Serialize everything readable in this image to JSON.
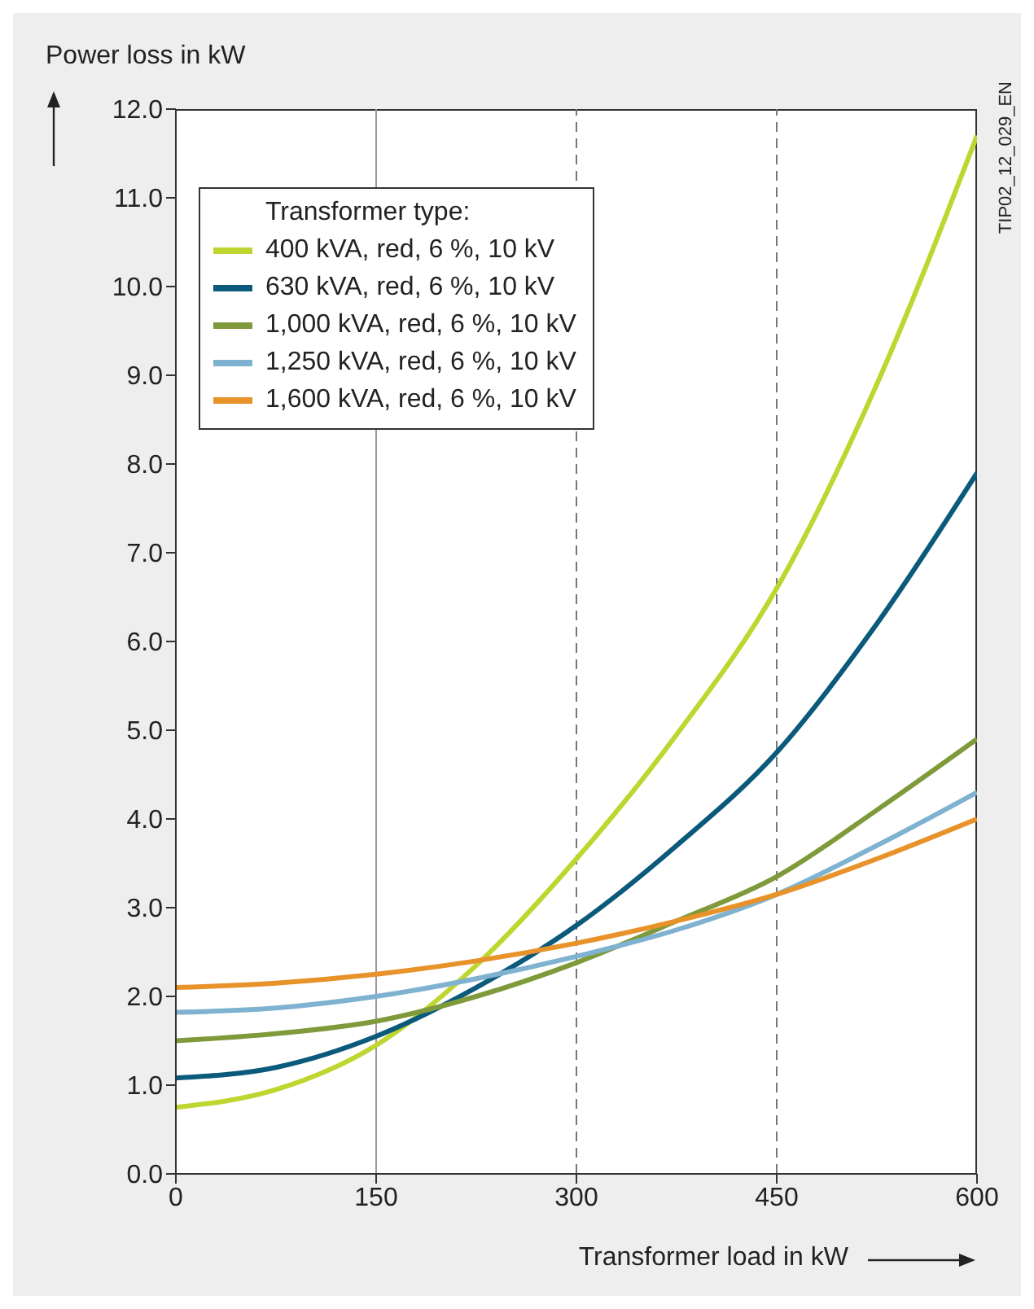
{
  "chart_data": {
    "type": "line",
    "xlabel": "Transformer load in kW",
    "ylabel": "Power loss in kW",
    "legend_title": "Transformer type:",
    "annotations": [
      "TIP02_12_029_EN"
    ],
    "x": [
      0,
      75,
      150,
      225,
      300,
      375,
      450,
      525,
      600
    ],
    "series": [
      {
        "name": "400 kVA, red, 6 %, 10 kV",
        "color": "#bfd630",
        "values": [
          0.75,
          0.95,
          1.45,
          2.35,
          3.55,
          4.95,
          6.6,
          8.9,
          11.7
        ]
      },
      {
        "name": "630 kVA, red, 6 %, 10 kV",
        "color": "#0b5a7c",
        "values": [
          1.08,
          1.2,
          1.55,
          2.1,
          2.8,
          3.7,
          4.75,
          6.2,
          7.9
        ]
      },
      {
        "name": "1,000 kVA, red, 6 %, 10 kV",
        "color": "#7f9a3a",
        "values": [
          1.5,
          1.58,
          1.72,
          2.0,
          2.38,
          2.85,
          3.35,
          4.1,
          4.9
        ]
      },
      {
        "name": "1,250 kVA, red, 6 %, 10 kV",
        "color": "#7fb2d0",
        "values": [
          1.82,
          1.87,
          2.0,
          2.2,
          2.45,
          2.75,
          3.15,
          3.7,
          4.3
        ]
      },
      {
        "name": "1,600 kVA, red, 6 %, 10 kV",
        "color": "#e8922a",
        "values": [
          2.1,
          2.15,
          2.25,
          2.4,
          2.6,
          2.85,
          3.15,
          3.55,
          4.0
        ]
      }
    ],
    "xlim": [
      0,
      600
    ],
    "xticks": [
      0,
      150,
      300,
      450,
      600
    ],
    "ylim": [
      0,
      12
    ],
    "yticks": [
      {
        "value": 0,
        "label": "0.0"
      },
      {
        "value": 1,
        "label": "1.0"
      },
      {
        "value": 2,
        "label": "2.0"
      },
      {
        "value": 3,
        "label": "3.0"
      },
      {
        "value": 4,
        "label": "4.0"
      },
      {
        "value": 5,
        "label": "5.0"
      },
      {
        "value": 6,
        "label": "6.0"
      },
      {
        "value": 7,
        "label": "7.0"
      },
      {
        "value": 8,
        "label": "8.0"
      },
      {
        "value": 9,
        "label": "9.0"
      },
      {
        "value": 10,
        "label": "10.0"
      },
      {
        "value": 11,
        "label": "11.0"
      },
      {
        "value": 12,
        "label": "12.0"
      }
    ],
    "ref_lines": [
      {
        "axis": "x",
        "value": 150,
        "color": "#999999",
        "line_style": "solid"
      },
      {
        "axis": "x",
        "value": 300,
        "color": "#777777",
        "line_style": "dashed"
      },
      {
        "axis": "x",
        "value": 450,
        "color": "#777777",
        "line_style": "dashed"
      }
    ],
    "grid": false,
    "legend": "top left",
    "marker": "none",
    "line_style": "solid"
  }
}
